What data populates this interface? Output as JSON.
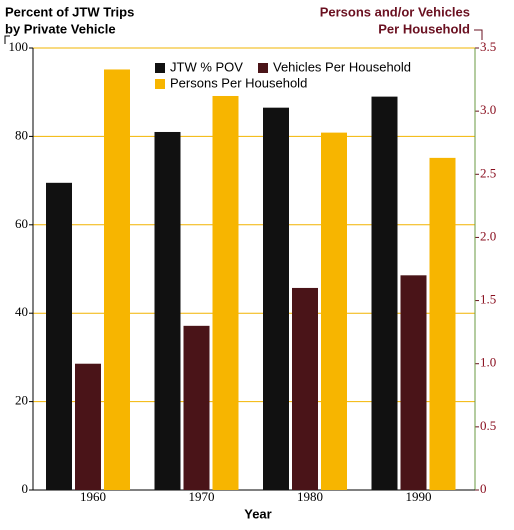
{
  "chart_data": {
    "type": "bar",
    "y_label": [
      "Percent of JTW Trips",
      "by Private Vehicle"
    ],
    "y2_label": [
      "Persons and/or Vehicles",
      "Per Household"
    ],
    "x_label": "Year",
    "categories": [
      "1960",
      "1970",
      "1980",
      "1990"
    ],
    "series": [
      {
        "name": "JTW % POV",
        "color": "#111111",
        "values": [
          69.5,
          81,
          86.5,
          89
        ]
      },
      {
        "name": "Vehicles Per Household",
        "color": "#4a1418",
        "axis": "y2",
        "values": [
          1.0,
          1.3,
          1.6,
          1.7
        ]
      },
      {
        "name": "Persons Per Household",
        "color": "#f7b500",
        "axis": "y2",
        "values": [
          3.33,
          3.12,
          2.83,
          2.63
        ]
      }
    ],
    "ylim": [
      0,
      100
    ],
    "yticks": [
      0,
      20,
      40,
      60,
      80,
      100
    ],
    "y2lim": [
      0,
      3.5
    ],
    "y2ticks": [
      0,
      0.5,
      {
        "value": 1,
        "label": "1.0"
      },
      1.5,
      {
        "value": 2,
        "label": "2.0"
      },
      2.5,
      {
        "value": 3,
        "label": "3.0"
      },
      3.5
    ],
    "grid": true
  }
}
